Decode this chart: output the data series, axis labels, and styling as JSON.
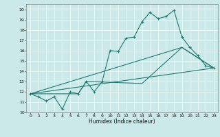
{
  "title": "",
  "xlabel": "Humidex (Indice chaleur)",
  "xlim": [
    -0.5,
    23.5
  ],
  "ylim": [
    10,
    20.5
  ],
  "xticks": [
    0,
    1,
    2,
    3,
    4,
    5,
    6,
    7,
    8,
    9,
    10,
    11,
    12,
    13,
    14,
    15,
    16,
    17,
    18,
    19,
    20,
    21,
    22,
    23
  ],
  "yticks": [
    10,
    11,
    12,
    13,
    14,
    15,
    16,
    17,
    18,
    19,
    20
  ],
  "bg_color": "#cce9e9",
  "line_color": "#1a7a6e",
  "line1_x": [
    0,
    1,
    2,
    3,
    4,
    5,
    6,
    7,
    8,
    9,
    10,
    11,
    12,
    13,
    14,
    15,
    16,
    17,
    18,
    19,
    20,
    21,
    22,
    23
  ],
  "line1_y": [
    11.8,
    11.5,
    11.1,
    11.5,
    10.3,
    12.0,
    11.8,
    13.0,
    12.0,
    13.0,
    16.0,
    15.9,
    17.2,
    17.3,
    18.8,
    19.7,
    19.1,
    19.3,
    19.9,
    17.3,
    16.3,
    15.5,
    14.5,
    14.3
  ],
  "line2_x": [
    0,
    23
  ],
  "line2_y": [
    11.8,
    14.3
  ],
  "line3_x": [
    0,
    19,
    23
  ],
  "line3_y": [
    11.8,
    16.3,
    14.3
  ],
  "line4_x": [
    0,
    6,
    7,
    14,
    19,
    23
  ],
  "line4_y": [
    11.8,
    11.8,
    13.0,
    12.8,
    16.3,
    14.3
  ]
}
